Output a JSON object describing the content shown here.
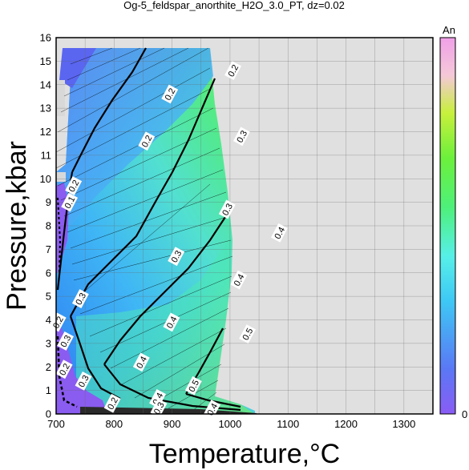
{
  "chart_data": {
    "type": "contour",
    "title": "Og-5_feldspar_anorthite_H2O_3.0_PT, dz=0.02",
    "xlabel": "Temperature,°C",
    "ylabel": "Pressure,kbar",
    "xlim": [
      700,
      1350
    ],
    "ylim": [
      0,
      16
    ],
    "xticks": [
      "700",
      "800",
      "900",
      "1000",
      "1100",
      "1200",
      "1300"
    ],
    "yticks": [
      "0",
      "1",
      "2",
      "3",
      "4",
      "5",
      "6",
      "7",
      "8",
      "9",
      "10",
      "11",
      "12",
      "13",
      "14",
      "15",
      "16"
    ],
    "grid": true,
    "colorbar": {
      "label": "An",
      "min_label": "0",
      "colors": [
        "#8a5cf5",
        "#5a78f5",
        "#3ec8f5",
        "#57f0e8",
        "#4ef07a",
        "#6cf03c",
        "#c8f03c",
        "#f5c8d8",
        "#f0a0e8"
      ]
    },
    "contour_labels": [
      {
        "text": "0.2",
        "x": 1005,
        "y": 14.6
      },
      {
        "text": "0.2",
        "x": 896,
        "y": 13.6
      },
      {
        "text": "0.2",
        "x": 856,
        "y": 11.6
      },
      {
        "text": "0.1",
        "x": 723,
        "y": 9.0
      },
      {
        "text": "0.2",
        "x": 730,
        "y": 9.7
      },
      {
        "text": "0.3",
        "x": 1020,
        "y": 11.8
      },
      {
        "text": "0.3",
        "x": 995,
        "y": 8.7
      },
      {
        "text": "0.3",
        "x": 907,
        "y": 6.7
      },
      {
        "text": "0.3",
        "x": 742,
        "y": 4.9
      },
      {
        "text": "0.3",
        "x": 716,
        "y": 3.1
      },
      {
        "text": "0.2",
        "x": 703,
        "y": 3.9
      },
      {
        "text": "0.2",
        "x": 714,
        "y": 1.9
      },
      {
        "text": "0.3",
        "x": 747,
        "y": 1.4
      },
      {
        "text": "0.4",
        "x": 1085,
        "y": 7.7
      },
      {
        "text": "0.4",
        "x": 1015,
        "y": 5.7
      },
      {
        "text": "0.4",
        "x": 899,
        "y": 3.9
      },
      {
        "text": "0.4",
        "x": 847,
        "y": 2.2
      },
      {
        "text": "0.5",
        "x": 1030,
        "y": 3.4
      },
      {
        "text": "0.5",
        "x": 937,
        "y": 1.2
      },
      {
        "text": "0.4",
        "x": 875,
        "y": 0.65
      },
      {
        "text": "0.3",
        "x": 877,
        "y": 0.25
      },
      {
        "text": "0.2",
        "x": 797,
        "y": 0.45
      },
      {
        "text": "0.4",
        "x": 969,
        "y": 0.2
      }
    ]
  }
}
